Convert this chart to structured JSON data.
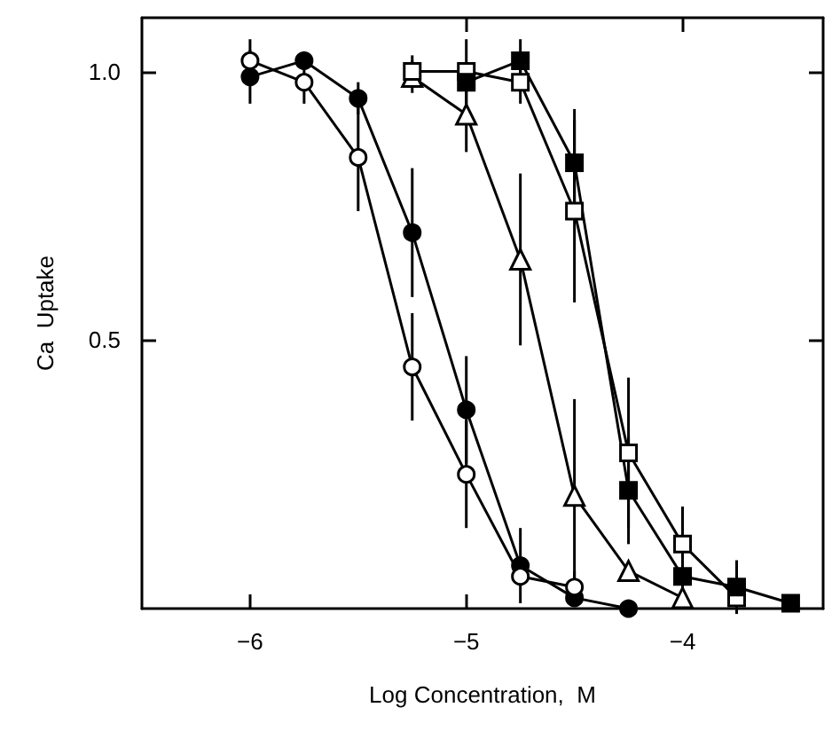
{
  "chart_data": {
    "type": "line",
    "xlabel": "Log Concentration,  M",
    "ylabel": "Ca  Uptake",
    "xlim": [
      -6.5,
      -3.35
    ],
    "xticks": [
      {
        "value": -6,
        "label": "−6"
      },
      {
        "value": -5,
        "label": "−5"
      },
      {
        "value": -4,
        "label": "−4"
      }
    ],
    "ylim": [
      0,
      1.1
    ],
    "yticks": [
      0.5,
      {
        "value": 1,
        "label": "1.0"
      }
    ],
    "grid": false,
    "line_style": "solid",
    "series": [
      {
        "color": "#000000",
        "marker": "circle",
        "x": [
          -6,
          -5.75,
          -5.5,
          -5.25,
          -5,
          -4.75,
          -4.5,
          -4.25
        ],
        "values": [
          0.99,
          1.02,
          0.95,
          0.7,
          0.37,
          0.08,
          0.02,
          0.0
        ],
        "errors": [
          0.05,
          null,
          0.03,
          0.12,
          0.1,
          0.07,
          null,
          null
        ]
      },
      {
        "color": "#ffffff",
        "marker": "circle",
        "x": [
          -6,
          -5.75,
          -5.5,
          -5.25,
          -5,
          -4.75,
          -4.5
        ],
        "values": [
          1.02,
          0.98,
          0.84,
          0.45,
          0.25,
          0.06,
          0.04
        ],
        "errors": [
          0.04,
          0.04,
          0.1,
          0.1,
          0.1,
          null,
          0.03
        ]
      },
      {
        "color": "#ffffff",
        "marker": "triangle",
        "x": [
          -5.25,
          -5,
          -4.75,
          -4.5,
          -4.25,
          -4
        ],
        "values": [
          0.99,
          0.92,
          0.65,
          0.21,
          0.07,
          0.02
        ],
        "errors": [
          0.03,
          0.07,
          0.16,
          0.18,
          null,
          null
        ]
      },
      {
        "color": "#ffffff",
        "marker": "square",
        "x": [
          -5.25,
          -5,
          -4.75,
          -4.5,
          -4.25,
          -4,
          -3.75
        ],
        "values": [
          1.0,
          1.0,
          0.98,
          0.74,
          0.29,
          0.12,
          0.02
        ],
        "errors": [
          0.03,
          0.06,
          0.04,
          0.17,
          0.14,
          0.07,
          null
        ]
      },
      {
        "color": "#000000",
        "marker": "square",
        "x": [
          -5,
          -4.75,
          -4.5,
          -4.25,
          -4,
          -3.75,
          -3.5
        ],
        "values": [
          0.98,
          1.02,
          0.83,
          0.22,
          0.06,
          0.04,
          0.01
        ],
        "errors": [
          null,
          0.04,
          0.1,
          0.1,
          0.04,
          0.05,
          null
        ]
      }
    ]
  }
}
